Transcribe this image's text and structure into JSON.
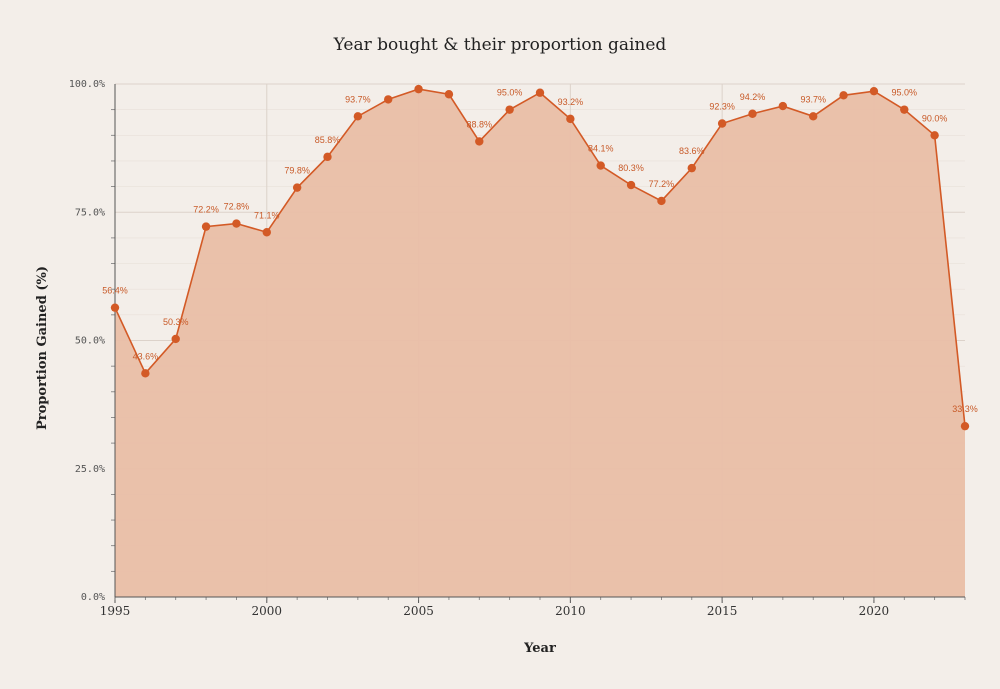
{
  "colors": {
    "background": "#f3eee9",
    "line": "#d35a26",
    "area": "#e9bea6",
    "grid": "#dcd2ca"
  },
  "chart_data": {
    "type": "area",
    "title": "Year bought & their proportion gained",
    "xlabel": "Year",
    "ylabel": "Proportion Gained (%)",
    "ylim": [
      0,
      100
    ],
    "xlim": [
      1995,
      2023
    ],
    "yticks": [
      "0.0%",
      "25.0%",
      "50.0%",
      "75.0%",
      "100.0%"
    ],
    "xticks": [
      "1995",
      "2000",
      "2005",
      "2010",
      "2015",
      "2020"
    ],
    "grid": true,
    "legend": "none",
    "x": [
      1995,
      1996,
      1997,
      1998,
      1999,
      2000,
      2001,
      2002,
      2003,
      2004,
      2005,
      2006,
      2007,
      2008,
      2009,
      2010,
      2011,
      2012,
      2013,
      2014,
      2015,
      2016,
      2017,
      2018,
      2019,
      2020,
      2021,
      2022,
      2023
    ],
    "values": [
      56.4,
      43.6,
      50.3,
      72.2,
      72.8,
      71.1,
      79.8,
      85.8,
      93.7,
      97.0,
      99.0,
      98.0,
      88.8,
      95.0,
      98.3,
      93.2,
      84.1,
      80.3,
      77.2,
      83.6,
      92.3,
      94.2,
      95.7,
      93.7,
      97.8,
      98.6,
      95.0,
      90.0,
      33.3
    ],
    "labels": [
      "56.4%",
      "43.6%",
      "50.3%",
      "72.2%",
      "72.8%",
      "71.1%",
      "79.8%",
      "85.8%",
      "93.7%",
      "",
      "",
      "",
      "88.8%",
      "95.0%",
      "",
      "93.2%",
      "84.1%",
      "80.3%",
      "77.2%",
      "83.6%",
      "92.3%",
      "94.2%",
      "",
      "93.7%",
      "",
      "",
      "95.0%",
      "90.0%",
      "33.3%"
    ]
  }
}
